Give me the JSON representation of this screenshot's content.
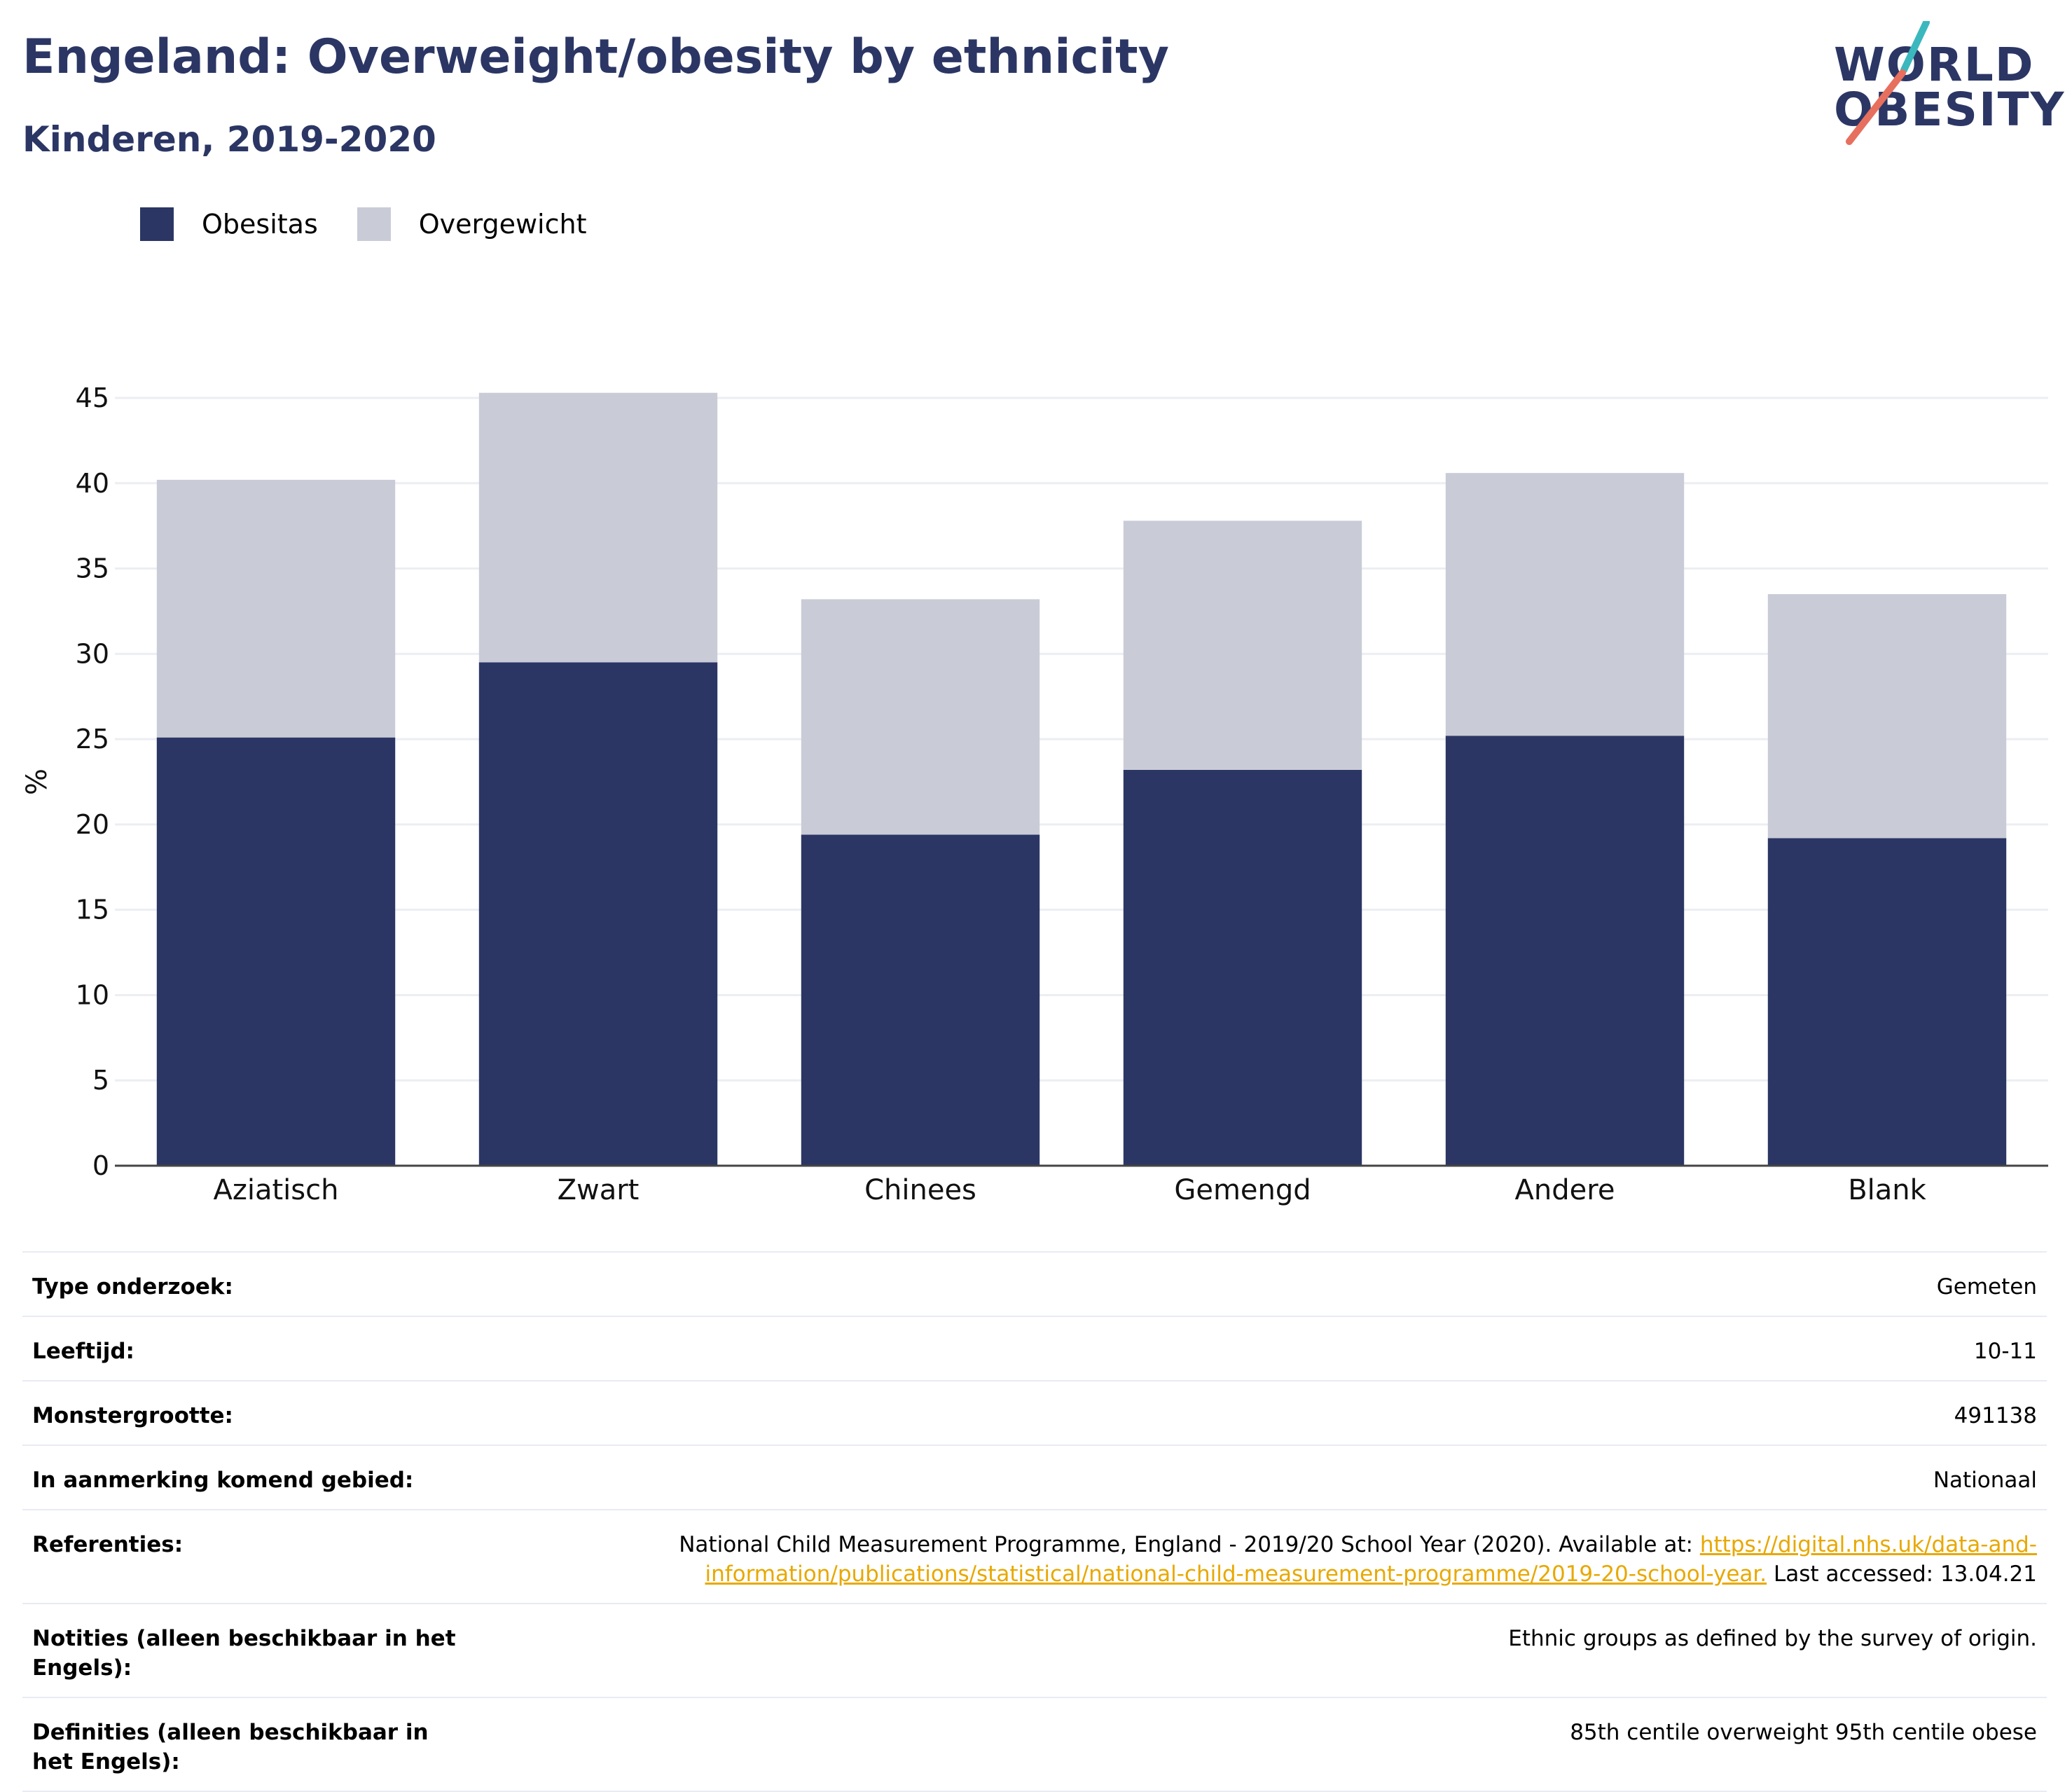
{
  "header": {
    "title": "Engeland: Overweight/obesity by ethnicity",
    "subtitle": "Kinderen, 2019-2020"
  },
  "logo": {
    "line1": "WORLD",
    "line2": "OBESITY"
  },
  "colors": {
    "obesitas": "#2b3664",
    "overgewicht": "#c9ccd7",
    "accent_teal": "#3bb8bd",
    "accent_coral": "#e76f5e",
    "link": "#e8a800"
  },
  "chart_data": {
    "type": "bar",
    "stacked": true,
    "categories": [
      "Aziatisch",
      "Zwart",
      "Chinees",
      "Gemengd",
      "Andere",
      "Blank"
    ],
    "series": [
      {
        "name": "Obesitas",
        "values": [
          25.1,
          29.5,
          19.4,
          23.2,
          25.2,
          19.2
        ]
      },
      {
        "name": "Overgewicht",
        "values": [
          15.1,
          15.8,
          13.8,
          14.6,
          15.4,
          14.3
        ]
      }
    ],
    "totals": [
      40.2,
      45.3,
      33.2,
      37.8,
      40.6,
      33.5
    ],
    "ylabel": "%",
    "ylim": [
      0,
      45
    ],
    "yticks": [
      0,
      5,
      10,
      15,
      20,
      25,
      30,
      35,
      40,
      45
    ],
    "grid": true,
    "legend_position": "top-left"
  },
  "info": {
    "rows": [
      {
        "label": "Type onderzoek:",
        "value": "Gemeten"
      },
      {
        "label": "Leeftijd:",
        "value": "10-11"
      },
      {
        "label": "Monstergrootte:",
        "value": "491138"
      },
      {
        "label": "In aanmerking komend gebied:",
        "value": "Nationaal"
      }
    ],
    "references": {
      "label": "Referenties:",
      "text_before": "National Child Measurement Programme, England - 2019/20 School Year (2020). Available at: ",
      "link_text": "https://digital.nhs.uk/data-and-information/publications/statistical/national-child-measurement-programme/2019-20-school-year.",
      "text_after": " Last accessed: 13.04.21"
    },
    "notes": {
      "label": "Notities (alleen beschikbaar in het Engels):",
      "value": "Ethnic groups as defined by the survey of origin."
    },
    "definitions": {
      "label": "Definities (alleen beschikbaar in het Engels):",
      "value": "85th centile overweight 95th centile obese"
    }
  }
}
